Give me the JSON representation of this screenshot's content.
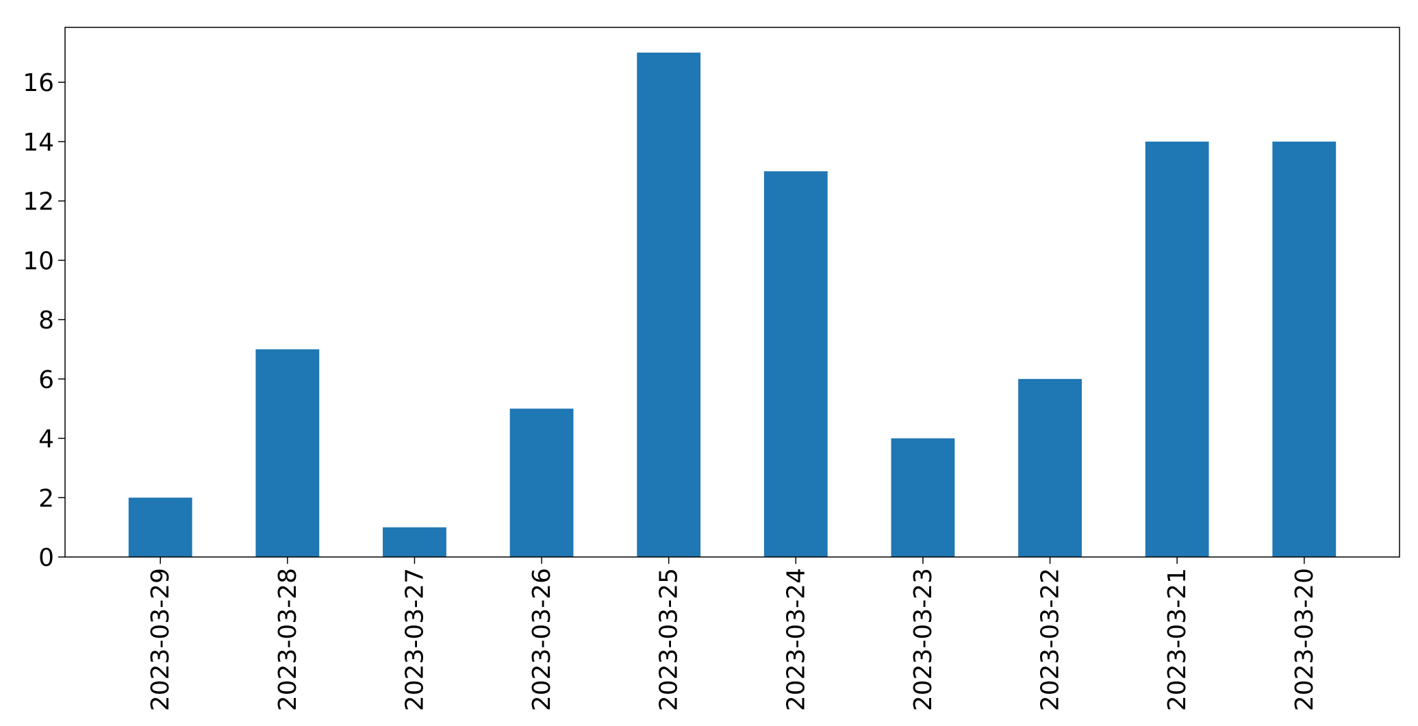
{
  "chart_data": {
    "type": "bar",
    "title": "",
    "xlabel": "",
    "ylabel": "",
    "categories": [
      "2023-03-29",
      "2023-03-28",
      "2023-03-27",
      "2023-03-26",
      "2023-03-25",
      "2023-03-24",
      "2023-03-23",
      "2023-03-22",
      "2023-03-21",
      "2023-03-20"
    ],
    "values": [
      2,
      7,
      1,
      5,
      17,
      13,
      4,
      6,
      14,
      14
    ],
    "ylim": [
      0,
      17.85
    ],
    "yticks": [
      "0",
      "2",
      "4",
      "6",
      "8",
      "10",
      "12",
      "14",
      "16"
    ],
    "grid": false,
    "legend": "none",
    "bar_color": "#1f77b4"
  }
}
